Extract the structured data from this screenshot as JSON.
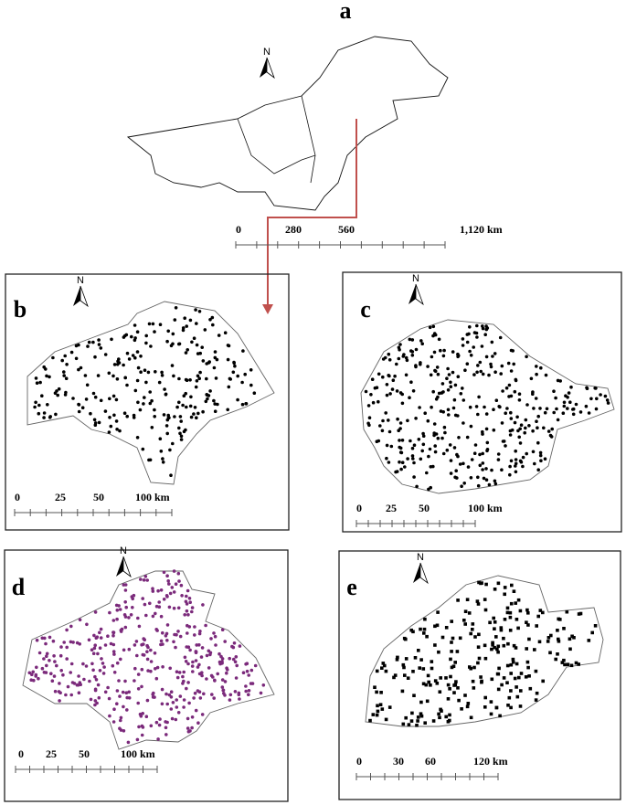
{
  "panels": [
    {
      "label": "a",
      "north": "N",
      "scale": [
        "0",
        "280",
        "560",
        "1,120 km"
      ]
    },
    {
      "label": "b",
      "north": "N",
      "scale": [
        "0",
        "25",
        "50",
        "100 km"
      ]
    },
    {
      "label": "c",
      "north": "N",
      "scale": [
        "0",
        "25",
        "50",
        "100 km"
      ]
    },
    {
      "label": "d",
      "north": "N",
      "scale": [
        "0",
        "25",
        "50",
        "100 km"
      ]
    },
    {
      "label": "e",
      "north": "N",
      "scale": [
        "0",
        "30",
        "60",
        "120 km"
      ]
    }
  ]
}
